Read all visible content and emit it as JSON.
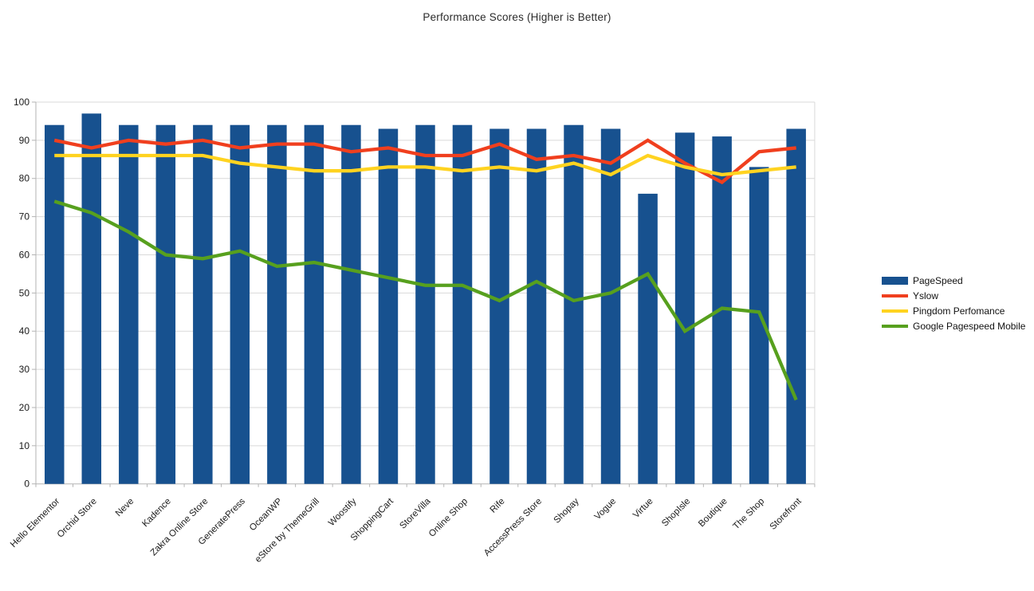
{
  "chart_data": {
    "type": "bar",
    "title": "Performance Scores (Higher is Better)",
    "categories": [
      "Hello Elementor",
      "Orchid Store",
      "Neve",
      "Kadence",
      "Zakra Online Store",
      "GeneratePress",
      "OceanWP",
      "eStore by ThemeGrill",
      "Woostify",
      "ShoppingCart",
      "StoreVilla",
      "Online Shop",
      "Rife",
      "AccessPress Store",
      "Shopay",
      "Vogue",
      "Virtue",
      "ShopIsle",
      "Boutique",
      "The Shop",
      "Storefront"
    ],
    "series": [
      {
        "name": "PageSpeed",
        "type": "bar",
        "color": "#17518f",
        "values": [
          94,
          97,
          94,
          94,
          94,
          94,
          94,
          94,
          94,
          93,
          94,
          94,
          93,
          93,
          94,
          93,
          76,
          92,
          91,
          83,
          93
        ]
      },
      {
        "name": "Yslow",
        "type": "line",
        "color": "#f03f1e",
        "values": [
          90,
          88,
          90,
          89,
          90,
          88,
          89,
          89,
          87,
          88,
          86,
          86,
          89,
          85,
          86,
          84,
          90,
          84,
          79,
          87,
          88
        ]
      },
      {
        "name": "Pingdom Perfomance",
        "type": "line",
        "color": "#ffd320",
        "values": [
          86,
          86,
          86,
          86,
          86,
          84,
          83,
          82,
          82,
          83,
          83,
          82,
          83,
          82,
          84,
          81,
          86,
          83,
          81,
          82,
          83
        ]
      },
      {
        "name": "Google Pagespeed Mobile",
        "type": "line",
        "color": "#57a01e",
        "values": [
          74,
          71,
          66,
          60,
          59,
          61,
          57,
          58,
          56,
          54,
          52,
          52,
          48,
          53,
          48,
          50,
          55,
          40,
          46,
          45,
          22
        ]
      }
    ],
    "xlabel": "",
    "ylabel": "",
    "ylim": [
      0,
      100
    ],
    "ytick_step": 10,
    "ytick_labels": [
      "0",
      "10",
      "20",
      "30",
      "40",
      "50",
      "60",
      "70",
      "80",
      "90",
      "100"
    ],
    "grid": true,
    "legend_position": "right"
  }
}
